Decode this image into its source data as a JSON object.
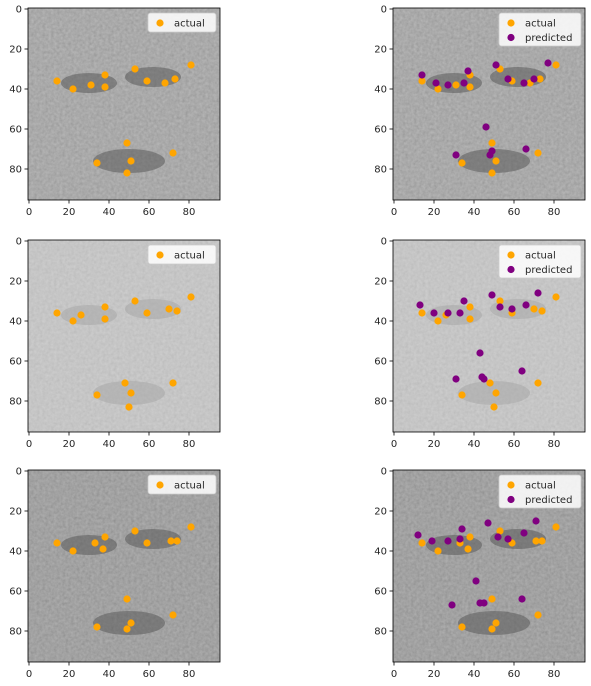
{
  "colors": {
    "actual": "#ffa500",
    "predicted": "#800080",
    "axes_spine": "#000000",
    "image_mid": "#8c8c8c"
  },
  "legend_labels": {
    "actual": "actual",
    "predicted": "predicted"
  },
  "axis_ticks": {
    "x": [
      0,
      20,
      40,
      60,
      80
    ],
    "y": [
      0,
      20,
      40,
      60,
      80
    ]
  },
  "chart_data": [
    {
      "type": "scatter",
      "image": "grayscale face image",
      "xlim": [
        -0.5,
        95.5
      ],
      "ylim": [
        95.5,
        -0.5
      ],
      "legend": "top-right",
      "series": [
        {
          "name": "actual",
          "points": [
            [
              14,
              36
            ],
            [
              22,
              40
            ],
            [
              31,
              38
            ],
            [
              38,
              33
            ],
            [
              38,
              39
            ],
            [
              53,
              30
            ],
            [
              59,
              36
            ],
            [
              68,
              37
            ],
            [
              73,
              35
            ],
            [
              81,
              28
            ],
            [
              49,
              67
            ],
            [
              34,
              77
            ],
            [
              51,
              76
            ],
            [
              49,
              82
            ],
            [
              72,
              72
            ]
          ]
        }
      ]
    },
    {
      "type": "scatter",
      "image": "grayscale face image",
      "xlim": [
        -0.5,
        95.5
      ],
      "ylim": [
        95.5,
        -0.5
      ],
      "legend": "top-right",
      "series": [
        {
          "name": "actual",
          "points": [
            [
              14,
              36
            ],
            [
              22,
              40
            ],
            [
              31,
              38
            ],
            [
              38,
              33
            ],
            [
              38,
              39
            ],
            [
              53,
              30
            ],
            [
              59,
              36
            ],
            [
              68,
              37
            ],
            [
              73,
              35
            ],
            [
              81,
              28
            ],
            [
              49,
              67
            ],
            [
              34,
              77
            ],
            [
              51,
              76
            ],
            [
              49,
              82
            ],
            [
              72,
              72
            ]
          ]
        },
        {
          "name": "predicted",
          "points": [
            [
              14,
              33
            ],
            [
              21,
              37
            ],
            [
              27,
              38
            ],
            [
              35,
              37
            ],
            [
              37,
              31
            ],
            [
              51,
              28
            ],
            [
              57,
              35
            ],
            [
              65,
              37
            ],
            [
              70,
              35
            ],
            [
              77,
              27
            ],
            [
              46,
              59
            ],
            [
              31,
              73
            ],
            [
              48,
              73
            ],
            [
              49,
              71
            ],
            [
              66,
              70
            ]
          ]
        }
      ]
    },
    {
      "type": "scatter",
      "image": "grayscale face image",
      "xlim": [
        -0.5,
        95.5
      ],
      "ylim": [
        95.5,
        -0.5
      ],
      "legend": "top-right",
      "series": [
        {
          "name": "actual",
          "points": [
            [
              14,
              36
            ],
            [
              22,
              40
            ],
            [
              26,
              37
            ],
            [
              38,
              33
            ],
            [
              38,
              39
            ],
            [
              53,
              30
            ],
            [
              59,
              36
            ],
            [
              70,
              34
            ],
            [
              74,
              35
            ],
            [
              81,
              28
            ],
            [
              48,
              71
            ],
            [
              34,
              77
            ],
            [
              51,
              76
            ],
            [
              50,
              83
            ],
            [
              72,
              71
            ]
          ]
        }
      ]
    },
    {
      "type": "scatter",
      "image": "grayscale face image",
      "xlim": [
        -0.5,
        95.5
      ],
      "ylim": [
        95.5,
        -0.5
      ],
      "legend": "top-right",
      "series": [
        {
          "name": "actual",
          "points": [
            [
              14,
              36
            ],
            [
              22,
              40
            ],
            [
              26,
              37
            ],
            [
              38,
              33
            ],
            [
              38,
              39
            ],
            [
              53,
              30
            ],
            [
              59,
              36
            ],
            [
              70,
              34
            ],
            [
              74,
              35
            ],
            [
              81,
              28
            ],
            [
              48,
              71
            ],
            [
              34,
              77
            ],
            [
              51,
              76
            ],
            [
              50,
              83
            ],
            [
              72,
              71
            ]
          ]
        },
        {
          "name": "predicted",
          "points": [
            [
              13,
              32
            ],
            [
              20,
              36
            ],
            [
              27,
              36
            ],
            [
              33,
              36
            ],
            [
              35,
              30
            ],
            [
              49,
              27
            ],
            [
              53,
              33
            ],
            [
              59,
              34
            ],
            [
              66,
              32
            ],
            [
              72,
              26
            ],
            [
              43,
              56
            ],
            [
              31,
              69
            ],
            [
              44,
              68
            ],
            [
              45,
              69
            ],
            [
              64,
              65
            ]
          ]
        }
      ]
    },
    {
      "type": "scatter",
      "image": "grayscale face image",
      "xlim": [
        -0.5,
        95.5
      ],
      "ylim": [
        95.5,
        -0.5
      ],
      "legend": "top-right",
      "series": [
        {
          "name": "actual",
          "points": [
            [
              14,
              36
            ],
            [
              22,
              40
            ],
            [
              33,
              36
            ],
            [
              38,
              33
            ],
            [
              37,
              39
            ],
            [
              53,
              30
            ],
            [
              59,
              36
            ],
            [
              71,
              35
            ],
            [
              74,
              35
            ],
            [
              81,
              28
            ],
            [
              49,
              64
            ],
            [
              34,
              78
            ],
            [
              51,
              76
            ],
            [
              49,
              79
            ],
            [
              72,
              72
            ]
          ]
        }
      ]
    },
    {
      "type": "scatter",
      "image": "grayscale face image",
      "xlim": [
        -0.5,
        95.5
      ],
      "ylim": [
        95.5,
        -0.5
      ],
      "legend": "top-right",
      "series": [
        {
          "name": "actual",
          "points": [
            [
              14,
              36
            ],
            [
              22,
              40
            ],
            [
              33,
              36
            ],
            [
              38,
              33
            ],
            [
              37,
              39
            ],
            [
              53,
              30
            ],
            [
              59,
              36
            ],
            [
              71,
              35
            ],
            [
              74,
              35
            ],
            [
              81,
              28
            ],
            [
              49,
              64
            ],
            [
              34,
              78
            ],
            [
              51,
              76
            ],
            [
              49,
              79
            ],
            [
              72,
              72
            ]
          ]
        },
        {
          "name": "predicted",
          "points": [
            [
              12,
              32
            ],
            [
              19,
              35
            ],
            [
              27,
              35
            ],
            [
              33,
              34
            ],
            [
              34,
              29
            ],
            [
              47,
              26
            ],
            [
              52,
              33
            ],
            [
              57,
              34
            ],
            [
              65,
              31
            ],
            [
              71,
              25
            ],
            [
              41,
              55
            ],
            [
              29,
              67
            ],
            [
              43,
              66
            ],
            [
              45,
              66
            ],
            [
              64,
              64
            ]
          ]
        }
      ]
    }
  ]
}
